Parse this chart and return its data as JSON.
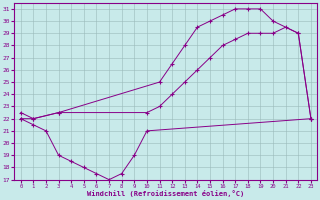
{
  "xlabel": "Windchill (Refroidissement éolien,°C)",
  "bg_color": "#c8eaea",
  "line_color": "#880088",
  "xlim": [
    -0.5,
    23.5
  ],
  "ylim": [
    17,
    31.5
  ],
  "yticks": [
    17,
    18,
    19,
    20,
    21,
    22,
    23,
    24,
    25,
    26,
    27,
    28,
    29,
    30,
    31
  ],
  "xticks": [
    0,
    1,
    2,
    3,
    4,
    5,
    6,
    7,
    8,
    9,
    10,
    11,
    12,
    13,
    14,
    15,
    16,
    17,
    18,
    19,
    20,
    21,
    22,
    23
  ],
  "lines": [
    {
      "x": [
        0,
        1,
        2,
        3,
        4,
        5,
        6,
        7,
        8,
        9,
        10,
        23
      ],
      "y": [
        22,
        21.5,
        21,
        19,
        18.5,
        18,
        17.5,
        17,
        17.5,
        19,
        21,
        22
      ]
    },
    {
      "x": [
        0,
        1,
        3,
        10,
        11,
        12,
        13,
        14,
        15,
        16,
        17,
        18,
        19,
        20,
        21,
        22,
        23
      ],
      "y": [
        22,
        22,
        22.5,
        22.5,
        23,
        24,
        25,
        26,
        27,
        28,
        28.5,
        29,
        29,
        29,
        29.5,
        29,
        22
      ]
    },
    {
      "x": [
        0,
        1,
        3,
        11,
        12,
        13,
        14,
        15,
        16,
        17,
        18,
        19,
        20,
        22,
        23
      ],
      "y": [
        22.5,
        22,
        22.5,
        25,
        26.5,
        28,
        29.5,
        30,
        30.5,
        31,
        31,
        31,
        30,
        29,
        22
      ]
    }
  ]
}
